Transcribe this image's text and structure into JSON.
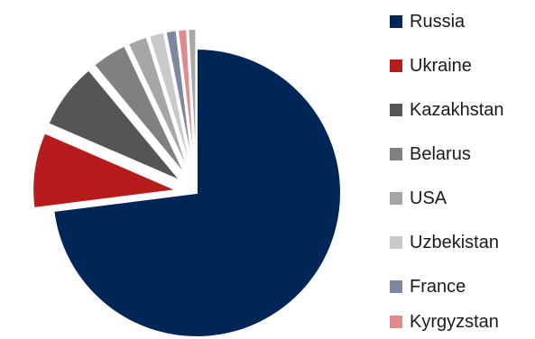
{
  "chart_data": {
    "type": "pie",
    "title": "",
    "slices": [
      {
        "label": "Russia",
        "value": 73.0,
        "color": "#002557"
      },
      {
        "label": "Ukraine",
        "value": 8.5,
        "color": "#b71c1c"
      },
      {
        "label": "Kazakhstan",
        "value": 7.5,
        "color": "#555555"
      },
      {
        "label": "Belarus",
        "value": 4.0,
        "color": "#808080"
      },
      {
        "label": "USA",
        "value": 2.2,
        "color": "#a6a6a6"
      },
      {
        "label": "Uzbekistan",
        "value": 1.7,
        "color": "#c9c9c9"
      },
      {
        "label": "France",
        "value": 1.2,
        "color": "#7d879e"
      },
      {
        "label": "Kyrgyzstan",
        "value": 1.0,
        "color": "#e08a8a"
      },
      {
        "label": "",
        "value": 0.9,
        "color": "#a8a8a8"
      }
    ],
    "legend": [
      "Russia",
      "Ukraine",
      "Kazakhstan",
      "Belarus",
      "USA",
      "Uzbekistan",
      "France",
      "Kyrgyzstan"
    ],
    "legend_position": "right",
    "exploded": "all slices except the largest"
  }
}
